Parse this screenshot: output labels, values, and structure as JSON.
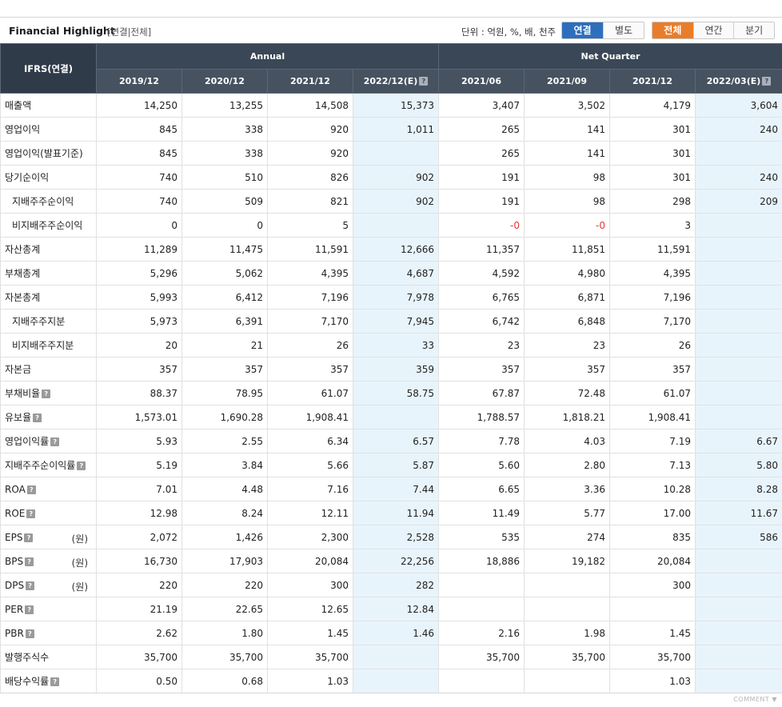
{
  "header": {
    "title": "Financial Highlight",
    "subtitle": "[연결|전체]",
    "unit": "단위 : 억원, %, 배, 천주",
    "basis_tabs": [
      "연결",
      "별도"
    ],
    "period_tabs": [
      "전체",
      "연간",
      "분기"
    ],
    "active_basis": "연결",
    "active_period": "전체"
  },
  "table": {
    "corner": "IFRS(연결)",
    "group_annual": "Annual",
    "group_quarter": "Net Quarter",
    "columns": [
      "2019/12",
      "2020/12",
      "2021/12",
      "2022/12(E)",
      "2021/06",
      "2021/09",
      "2021/12",
      "2022/03(E)"
    ],
    "rows": [
      {
        "label": "매출액",
        "sub": false,
        "help": false,
        "unit": "",
        "values": [
          "14,250",
          "13,255",
          "14,508",
          "15,373",
          "3,407",
          "3,502",
          "4,179",
          "3,604"
        ]
      },
      {
        "label": "영업이익",
        "sub": false,
        "help": false,
        "unit": "",
        "values": [
          "845",
          "338",
          "920",
          "1,011",
          "265",
          "141",
          "301",
          "240"
        ]
      },
      {
        "label": "영업이익(발표기준)",
        "sub": false,
        "help": false,
        "unit": "",
        "values": [
          "845",
          "338",
          "920",
          "",
          "265",
          "141",
          "301",
          ""
        ]
      },
      {
        "label": "당기순이익",
        "sub": false,
        "help": false,
        "unit": "",
        "values": [
          "740",
          "510",
          "826",
          "902",
          "191",
          "98",
          "301",
          "240"
        ]
      },
      {
        "label": "지배주주순이익",
        "sub": true,
        "help": false,
        "unit": "",
        "values": [
          "740",
          "509",
          "821",
          "902",
          "191",
          "98",
          "298",
          "209"
        ]
      },
      {
        "label": "비지배주주순이익",
        "sub": true,
        "help": false,
        "unit": "",
        "values": [
          "0",
          "0",
          "5",
          "",
          "-0",
          "-0",
          "3",
          ""
        ]
      },
      {
        "label": "자산총계",
        "sub": false,
        "help": false,
        "unit": "",
        "values": [
          "11,289",
          "11,475",
          "11,591",
          "12,666",
          "11,357",
          "11,851",
          "11,591",
          ""
        ]
      },
      {
        "label": "부채총계",
        "sub": false,
        "help": false,
        "unit": "",
        "values": [
          "5,296",
          "5,062",
          "4,395",
          "4,687",
          "4,592",
          "4,980",
          "4,395",
          ""
        ]
      },
      {
        "label": "자본총계",
        "sub": false,
        "help": false,
        "unit": "",
        "values": [
          "5,993",
          "6,412",
          "7,196",
          "7,978",
          "6,765",
          "6,871",
          "7,196",
          ""
        ]
      },
      {
        "label": "지배주주지분",
        "sub": true,
        "help": false,
        "unit": "",
        "values": [
          "5,973",
          "6,391",
          "7,170",
          "7,945",
          "6,742",
          "6,848",
          "7,170",
          ""
        ]
      },
      {
        "label": "비지배주주지분",
        "sub": true,
        "help": false,
        "unit": "",
        "values": [
          "20",
          "21",
          "26",
          "33",
          "23",
          "23",
          "26",
          ""
        ]
      },
      {
        "label": "자본금",
        "sub": false,
        "help": false,
        "unit": "",
        "values": [
          "357",
          "357",
          "357",
          "359",
          "357",
          "357",
          "357",
          ""
        ]
      },
      {
        "label": "부채비율",
        "sub": false,
        "help": true,
        "unit": "",
        "values": [
          "88.37",
          "78.95",
          "61.07",
          "58.75",
          "67.87",
          "72.48",
          "61.07",
          ""
        ]
      },
      {
        "label": "유보율",
        "sub": false,
        "help": true,
        "unit": "",
        "values": [
          "1,573.01",
          "1,690.28",
          "1,908.41",
          "",
          "1,788.57",
          "1,818.21",
          "1,908.41",
          ""
        ]
      },
      {
        "label": "영업이익률",
        "sub": false,
        "help": true,
        "unit": "",
        "values": [
          "5.93",
          "2.55",
          "6.34",
          "6.57",
          "7.78",
          "4.03",
          "7.19",
          "6.67"
        ]
      },
      {
        "label": "지배주주순이익률",
        "sub": false,
        "help": true,
        "unit": "",
        "values": [
          "5.19",
          "3.84",
          "5.66",
          "5.87",
          "5.60",
          "2.80",
          "7.13",
          "5.80"
        ]
      },
      {
        "label": "ROA",
        "sub": false,
        "help": true,
        "unit": "",
        "values": [
          "7.01",
          "4.48",
          "7.16",
          "7.44",
          "6.65",
          "3.36",
          "10.28",
          "8.28"
        ]
      },
      {
        "label": "ROE",
        "sub": false,
        "help": true,
        "unit": "",
        "values": [
          "12.98",
          "8.24",
          "12.11",
          "11.94",
          "11.49",
          "5.77",
          "17.00",
          "11.67"
        ]
      },
      {
        "label": "EPS",
        "sub": false,
        "help": true,
        "unit": "(원)",
        "values": [
          "2,072",
          "1,426",
          "2,300",
          "2,528",
          "535",
          "274",
          "835",
          "586"
        ]
      },
      {
        "label": "BPS",
        "sub": false,
        "help": true,
        "unit": "(원)",
        "values": [
          "16,730",
          "17,903",
          "20,084",
          "22,256",
          "18,886",
          "19,182",
          "20,084",
          ""
        ]
      },
      {
        "label": "DPS",
        "sub": false,
        "help": true,
        "unit": "(원)",
        "values": [
          "220",
          "220",
          "300",
          "282",
          "",
          "",
          "300",
          ""
        ]
      },
      {
        "label": "PER",
        "sub": false,
        "help": true,
        "unit": "",
        "values": [
          "21.19",
          "22.65",
          "12.65",
          "12.84",
          "",
          "",
          "",
          ""
        ]
      },
      {
        "label": "PBR",
        "sub": false,
        "help": true,
        "unit": "",
        "values": [
          "2.62",
          "1.80",
          "1.45",
          "1.46",
          "2.16",
          "1.98",
          "1.45",
          ""
        ]
      },
      {
        "label": "발행주식수",
        "sub": false,
        "help": false,
        "unit": "",
        "values": [
          "35,700",
          "35,700",
          "35,700",
          "",
          "35,700",
          "35,700",
          "35,700",
          ""
        ]
      },
      {
        "label": "배당수익률",
        "sub": false,
        "help": true,
        "unit": "",
        "values": [
          "0.50",
          "0.68",
          "1.03",
          "",
          "",
          "",
          "1.03",
          ""
        ]
      }
    ]
  },
  "footer": {
    "comment": "COMMENT ▼"
  },
  "colors": {
    "header_bg": "#3a4756",
    "estimate_bg": "#e8f4fb",
    "basis_active": "#2d6fbd",
    "period_active": "#ea7d29",
    "negative": "#e03a3a"
  }
}
